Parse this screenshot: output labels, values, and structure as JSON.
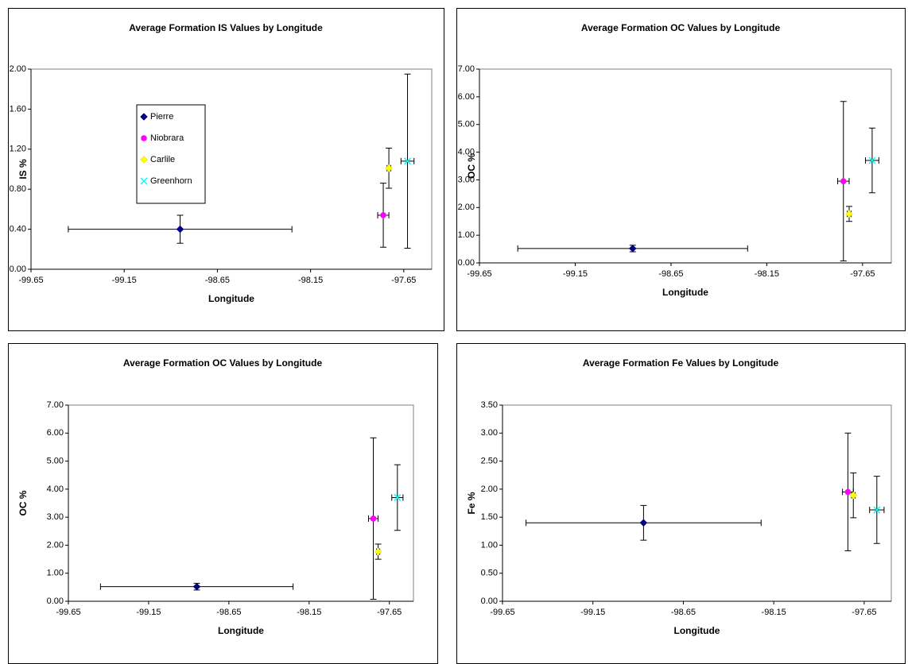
{
  "chart_data": [
    {
      "type": "scatter",
      "title": "Average Formation IS Values by Longitude",
      "xlabel": "Longitude",
      "ylabel": "IS %",
      "xlim": [
        -99.65,
        -97.5
      ],
      "xticks": [
        -99.65,
        -99.15,
        -98.65,
        -98.15,
        -97.65
      ],
      "ylim": [
        0,
        2
      ],
      "yticks": [
        {
          "value": 0,
          "label": "0.00"
        },
        {
          "value": 0.4,
          "label": "0.40"
        },
        {
          "value": 0.8,
          "label": "0.80"
        },
        {
          "value": 1.2,
          "label": "1.20"
        },
        {
          "value": 1.6,
          "label": "1.60"
        },
        {
          "value": 2,
          "label": "2.00"
        }
      ],
      "legend": true,
      "series": [
        {
          "name": "Pierre",
          "color": "#000080",
          "marker": "diamond",
          "x": [
            -98.85
          ],
          "xerr": [
            0.6
          ],
          "values": [
            0.4
          ],
          "yerr": [
            0.14
          ]
        },
        {
          "name": "Niobrara",
          "color": "#ff00ff",
          "marker": "circle",
          "x": [
            -97.76
          ],
          "xerr": [
            0.03
          ],
          "values": [
            0.54
          ],
          "yerr": [
            0.32
          ]
        },
        {
          "name": "Carlile",
          "color": "#ffff00",
          "marker": "diamond",
          "x": [
            -97.73
          ],
          "xerr": [
            0.01
          ],
          "values": [
            1.01
          ],
          "yerr": [
            0.2
          ]
        },
        {
          "name": "Greenhorn",
          "color": "#00ffff",
          "marker": "x",
          "x": [
            -97.63
          ],
          "xerr": [
            0.035
          ],
          "values": [
            1.08
          ],
          "yerr": [
            0.87
          ]
        }
      ]
    },
    {
      "type": "scatter",
      "title": "Average Formation OC Values by Longitude",
      "xlabel": "Longitude",
      "ylabel": "OC %",
      "xlim": [
        -99.65,
        -97.5
      ],
      "xticks": [
        -99.65,
        -99.15,
        -98.65,
        -98.15,
        -97.65
      ],
      "ylim": [
        0,
        7
      ],
      "yticks": [
        {
          "value": 0,
          "label": "0.00"
        },
        {
          "value": 1,
          "label": "1.00"
        },
        {
          "value": 2,
          "label": "2.00"
        },
        {
          "value": 3,
          "label": "3.00"
        },
        {
          "value": 4,
          "label": "4.00"
        },
        {
          "value": 5,
          "label": "5.00"
        },
        {
          "value": 6,
          "label": "6.00"
        },
        {
          "value": 7,
          "label": "7.00"
        }
      ],
      "series": [
        {
          "color": "#000080",
          "marker": "diamond",
          "x": [
            -98.85
          ],
          "xerr": [
            0.6
          ],
          "values": [
            0.52
          ],
          "yerr": [
            0.12
          ]
        },
        {
          "color": "#ff00ff",
          "marker": "circle",
          "x": [
            -97.75
          ],
          "xerr": [
            0.03
          ],
          "values": [
            2.95
          ],
          "yerr": [
            2.88
          ]
        },
        {
          "color": "#ffff00",
          "marker": "diamond",
          "x": [
            -97.72
          ],
          "xerr": [
            0.01
          ],
          "values": [
            1.77
          ],
          "yerr": [
            0.27
          ]
        },
        {
          "color": "#00ffff",
          "marker": "x",
          "x": [
            -97.6
          ],
          "xerr": [
            0.035
          ],
          "values": [
            3.7
          ],
          "yerr": [
            1.17
          ]
        }
      ]
    },
    {
      "type": "scatter",
      "title": "Average Formation OC Values by Longitude",
      "xlabel": "Longitude",
      "ylabel": "OC %",
      "xlim": [
        -99.65,
        -97.5
      ],
      "xticks": [
        -99.65,
        -99.15,
        -98.65,
        -98.15,
        -97.65
      ],
      "ylim": [
        0,
        7
      ],
      "yticks": [
        {
          "value": 0,
          "label": "0.00"
        },
        {
          "value": 1,
          "label": "1.00"
        },
        {
          "value": 2,
          "label": "2.00"
        },
        {
          "value": 3,
          "label": "3.00"
        },
        {
          "value": 4,
          "label": "4.00"
        },
        {
          "value": 5,
          "label": "5.00"
        },
        {
          "value": 6,
          "label": "6.00"
        },
        {
          "value": 7,
          "label": "7.00"
        }
      ],
      "series": [
        {
          "color": "#000080",
          "marker": "diamond",
          "x": [
            -98.85
          ],
          "xerr": [
            0.6
          ],
          "values": [
            0.52
          ],
          "yerr": [
            0.12
          ]
        },
        {
          "color": "#ff00ff",
          "marker": "circle",
          "x": [
            -97.75
          ],
          "xerr": [
            0.03
          ],
          "values": [
            2.95
          ],
          "yerr": [
            2.88
          ]
        },
        {
          "color": "#ffff00",
          "marker": "diamond",
          "x": [
            -97.72
          ],
          "xerr": [
            0.01
          ],
          "values": [
            1.77
          ],
          "yerr": [
            0.27
          ]
        },
        {
          "color": "#00ffff",
          "marker": "x",
          "x": [
            -97.6
          ],
          "xerr": [
            0.035
          ],
          "values": [
            3.7
          ],
          "yerr": [
            1.17
          ]
        }
      ]
    },
    {
      "type": "scatter",
      "title": "Average Formation Fe Values by Longitude",
      "xlabel": "Longitude",
      "ylabel": "Fe %",
      "xlim": [
        -99.65,
        -97.5
      ],
      "xticks": [
        -99.65,
        -99.15,
        -98.65,
        -98.15,
        -97.65
      ],
      "ylim": [
        0,
        3.5
      ],
      "yticks": [
        {
          "value": 0,
          "label": "0.00"
        },
        {
          "value": 0.5,
          "label": "0.50"
        },
        {
          "value": 1,
          "label": "1.00"
        },
        {
          "value": 1.5,
          "label": "1.50"
        },
        {
          "value": 2,
          "label": "2.00"
        },
        {
          "value": 2.5,
          "label": "2.50"
        },
        {
          "value": 3,
          "label": "3.00"
        },
        {
          "value": 3.5,
          "label": "3.50"
        }
      ],
      "series": [
        {
          "color": "#000080",
          "marker": "diamond",
          "x": [
            -98.87
          ],
          "xerr": [
            0.65
          ],
          "values": [
            1.4
          ],
          "yerr": [
            0.31
          ]
        },
        {
          "color": "#ff00ff",
          "marker": "circle",
          "x": [
            -97.74
          ],
          "xerr": [
            0.03
          ],
          "values": [
            1.95
          ],
          "yerr": [
            1.05
          ]
        },
        {
          "color": "#ffff00",
          "marker": "diamond",
          "x": [
            -97.71
          ],
          "xerr": [
            0.01
          ],
          "values": [
            1.89
          ],
          "yerr": [
            0.4
          ]
        },
        {
          "color": "#00ffff",
          "marker": "x",
          "x": [
            -97.58
          ],
          "xerr": [
            0.04
          ],
          "values": [
            1.63
          ],
          "yerr": [
            0.6
          ]
        }
      ]
    }
  ]
}
